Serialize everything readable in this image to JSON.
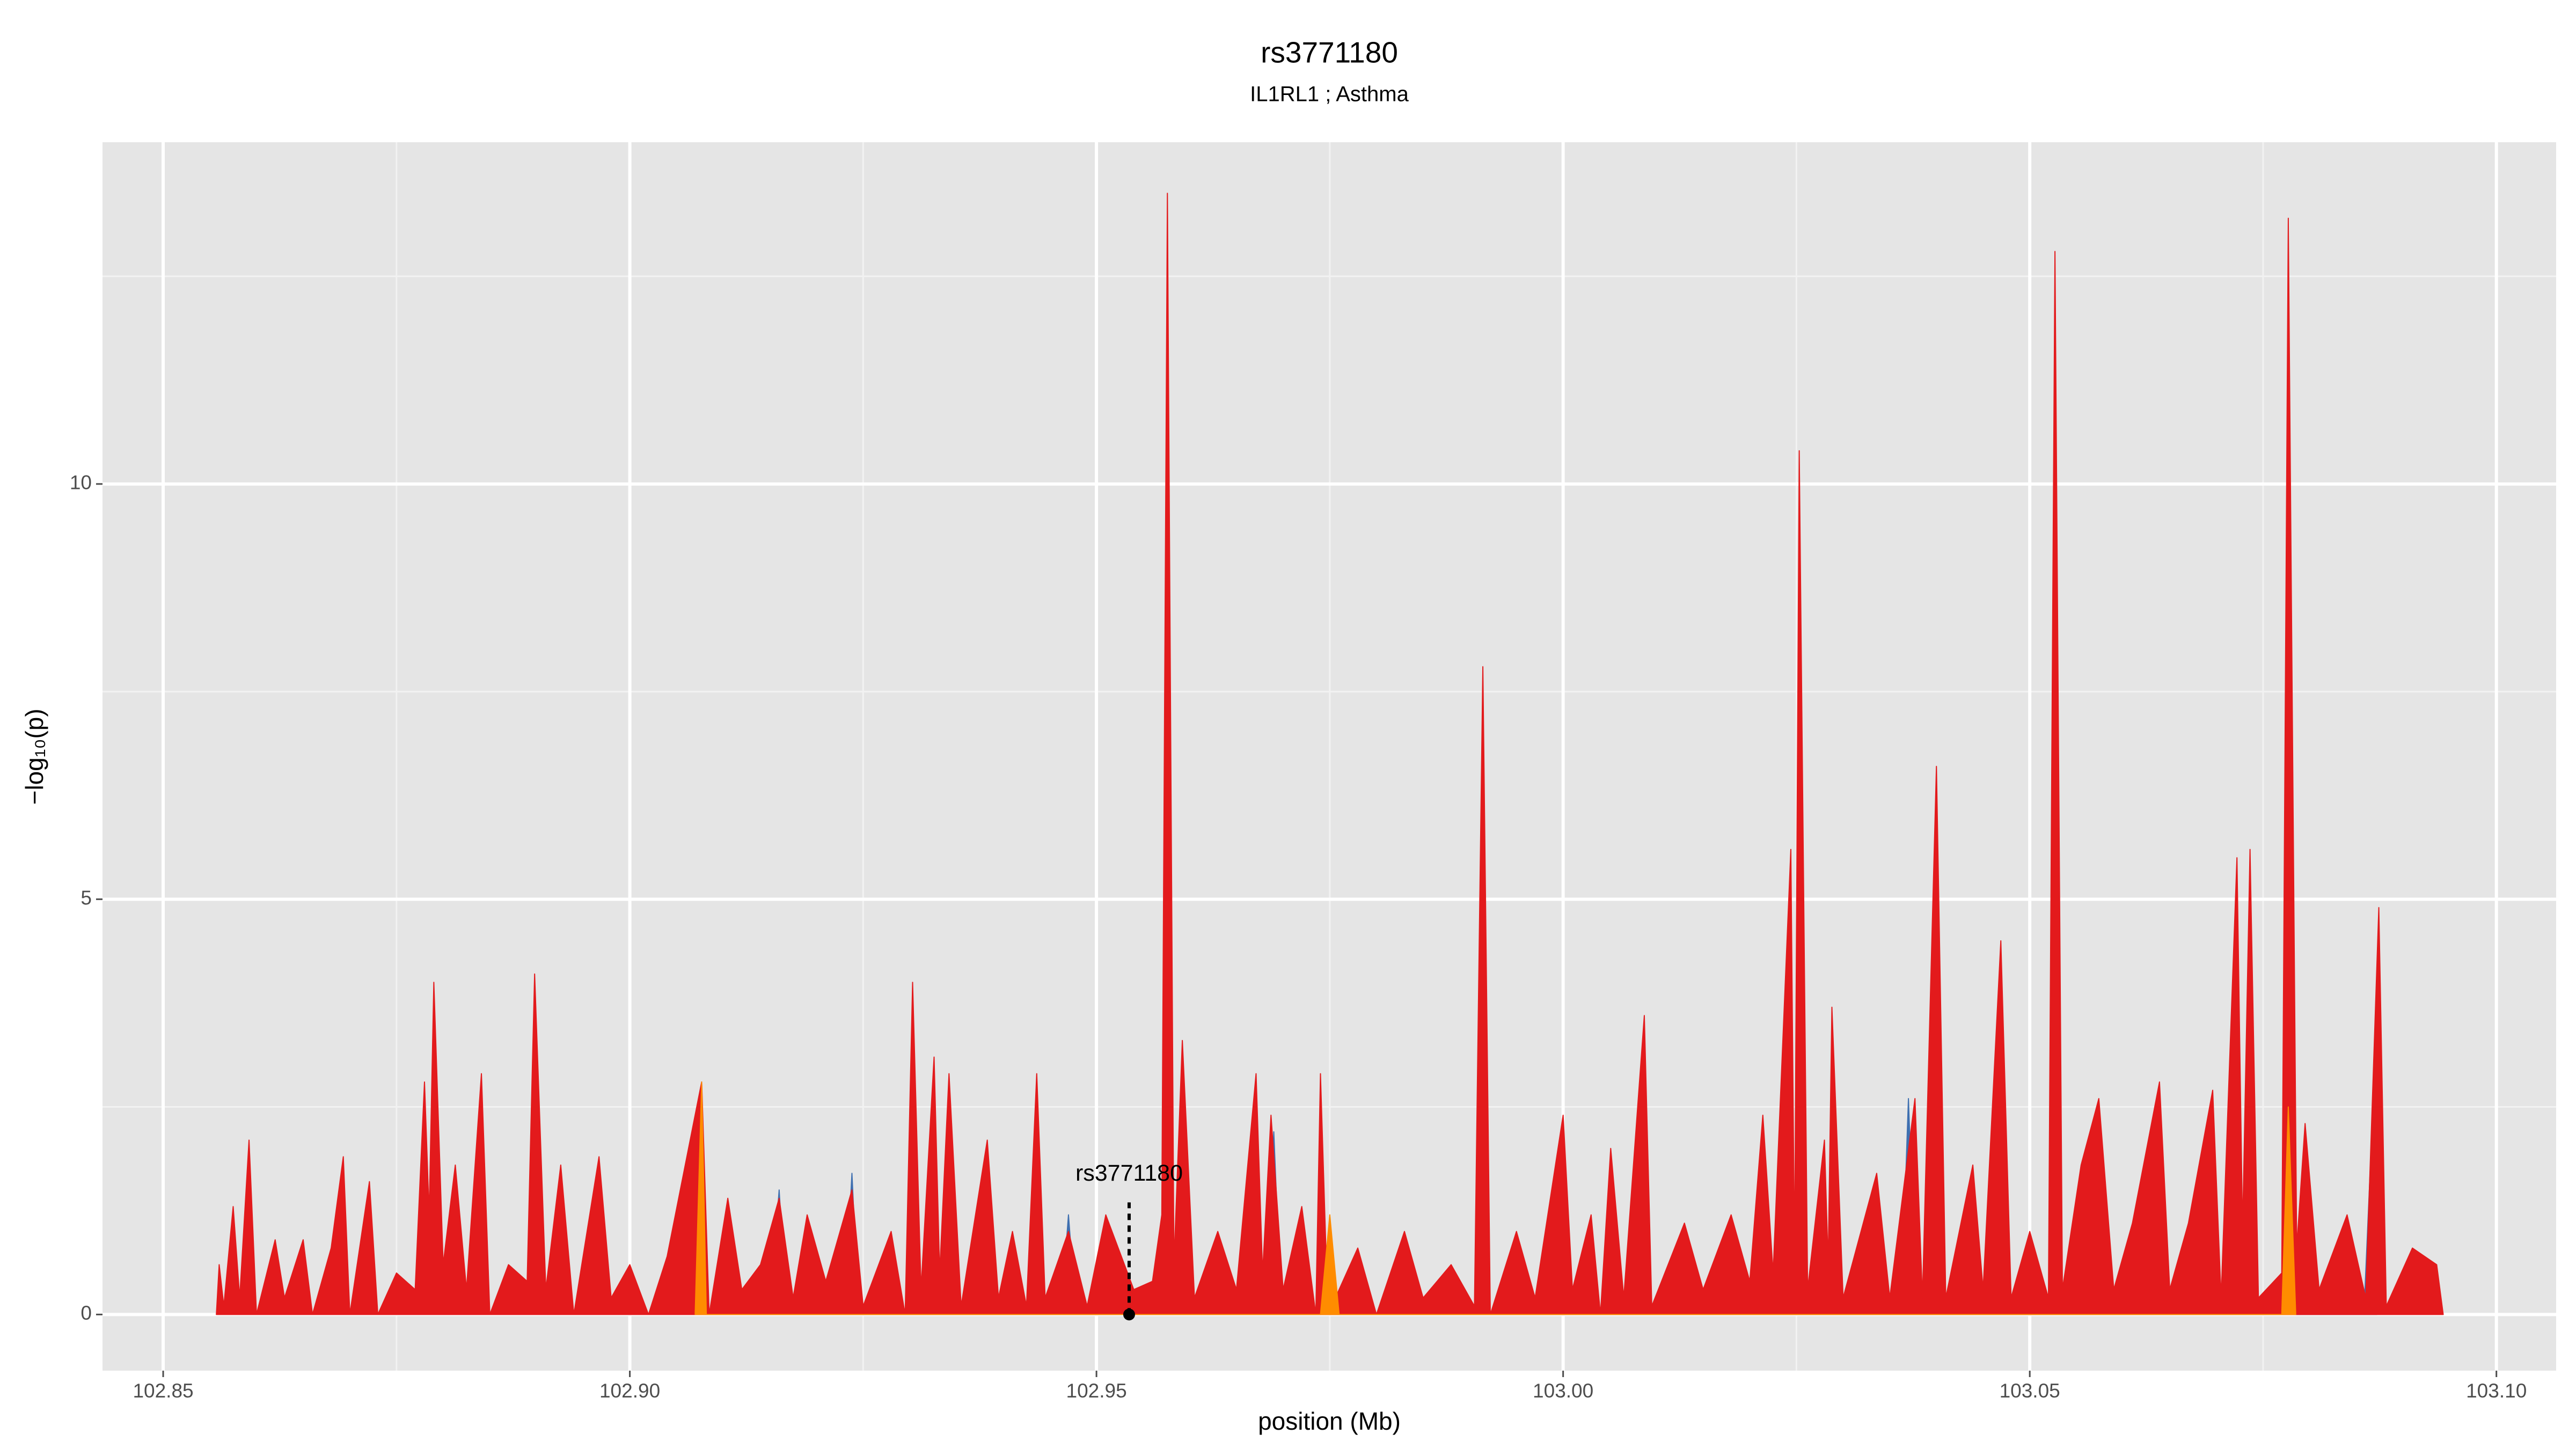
{
  "chart_data": {
    "type": "area",
    "title": "rs3771180",
    "subtitle": "IL1RL1 ; Asthma",
    "x_label": "position (Mb)",
    "y_label": "−log₁₀(p)",
    "xlim": [
      102.8435,
      103.1064
    ],
    "ylim": [
      -0.676,
      14.115
    ],
    "xticks": [
      102.85,
      {
        "value": 102.9,
        "label": "102.90"
      },
      102.95,
      {
        "value": 103.0,
        "label": "103.00"
      },
      103.05,
      {
        "value": 103.1,
        "label": "103.10"
      }
    ],
    "yticks": [
      0,
      5,
      10
    ],
    "xminorticks": [
      102.875,
      102.925,
      102.975,
      103.025,
      103.075
    ],
    "yminorticks": [
      2.5,
      7.5,
      12.5
    ],
    "grid": true,
    "background": "#e5e5e5",
    "annotation": {
      "label": "rs3771180",
      "x": 102.9535,
      "y": 1.35
    },
    "series": [
      {
        "color": "#3e6fb0",
        "x": [
          102.915,
          102.916,
          102.9168,
          102.923,
          102.9238,
          102.9245,
          102.9462,
          102.947,
          102.9478,
          102.9682,
          102.969,
          102.9698,
          103.0362,
          103.037,
          103.0378,
          103.0858,
          103.0865,
          103.0872
        ],
        "values": [
          0,
          1.5,
          0,
          0,
          1.7,
          0,
          0,
          1.2,
          0,
          0,
          2.2,
          0,
          0,
          2.6,
          0,
          0,
          1.8,
          0
        ]
      },
      {
        "color": "#e31a1c",
        "x": [
          102.8557,
          102.856,
          102.8565,
          102.8575,
          102.8582,
          102.8592,
          102.86,
          102.862,
          102.863,
          102.865,
          102.866,
          102.868,
          102.8693,
          102.87,
          102.8721,
          102.873,
          102.875,
          102.877,
          102.878,
          102.8785,
          102.879,
          102.88,
          102.8813,
          102.8825,
          102.8841,
          102.885,
          102.887,
          102.889,
          102.8898,
          102.891,
          102.8926,
          102.894,
          102.8967,
          102.898,
          102.9,
          102.902,
          102.904,
          102.9077,
          102.9085,
          102.9105,
          102.912,
          102.914,
          102.916,
          102.9175,
          102.919,
          102.921,
          102.9238,
          102.925,
          102.928,
          102.9295,
          102.9303,
          102.9312,
          102.9326,
          102.9332,
          102.9342,
          102.9355,
          102.9383,
          102.9395,
          102.941,
          102.9425,
          102.9436,
          102.9445,
          102.947,
          102.949,
          102.951,
          102.954,
          102.956,
          102.957,
          102.9576,
          102.9583,
          102.9592,
          102.9605,
          102.963,
          102.965,
          102.9671,
          102.9678,
          102.9687,
          102.97,
          102.972,
          102.9735,
          102.974,
          102.9748,
          102.978,
          102.98,
          102.983,
          102.985,
          102.988,
          102.9905,
          102.9914,
          102.9922,
          102.995,
          102.997,
          103.0,
          103.001,
          103.003,
          103.004,
          103.0051,
          103.0065,
          103.0087,
          103.0095,
          103.013,
          103.015,
          103.018,
          103.02,
          103.0214,
          103.0225,
          103.0244,
          103.0248,
          103.0253,
          103.0262,
          103.028,
          103.0284,
          103.0288,
          103.03,
          103.0336,
          103.035,
          103.0377,
          103.0385,
          103.04,
          103.041,
          103.0439,
          103.045,
          103.0469,
          103.048,
          103.05,
          103.052,
          103.0527,
          103.0535,
          103.0555,
          103.0574,
          103.059,
          103.061,
          103.0639,
          103.065,
          103.067,
          103.0696,
          103.0705,
          103.0722,
          103.0728,
          103.0736,
          103.0745,
          103.077,
          103.0777,
          103.0786,
          103.0795,
          103.081,
          103.084,
          103.086,
          103.0874,
          103.0882,
          103.091,
          103.0936,
          103.0943
        ],
        "values": [
          0,
          0.6,
          0.1,
          1.3,
          0.2,
          2.1,
          0,
          0.9,
          0.2,
          0.9,
          0,
          0.8,
          1.9,
          0,
          1.6,
          0,
          0.5,
          0.3,
          2.8,
          1.2,
          4.0,
          0.6,
          1.8,
          0.3,
          2.9,
          0,
          0.6,
          0.4,
          4.1,
          0.3,
          1.8,
          0,
          1.9,
          0.2,
          0.6,
          0,
          0.7,
          2.8,
          0,
          1.4,
          0.3,
          0.6,
          1.4,
          0.2,
          1.2,
          0.4,
          1.5,
          0.1,
          1.0,
          0,
          4.0,
          0.3,
          3.1,
          0.5,
          2.9,
          0.1,
          2.1,
          0.2,
          1.0,
          0.1,
          2.9,
          0.2,
          1.0,
          0.1,
          1.2,
          0.3,
          0.4,
          1.2,
          13.5,
          0.6,
          3.3,
          0.2,
          1.0,
          0.3,
          2.9,
          0.5,
          2.4,
          0.3,
          1.3,
          0,
          2.9,
          0,
          0.8,
          0,
          1.0,
          0.2,
          0.6,
          0.1,
          7.8,
          0,
          1.0,
          0.2,
          2.4,
          0.3,
          1.2,
          0,
          2.0,
          0.2,
          3.6,
          0.1,
          1.1,
          0.3,
          1.2,
          0.4,
          2.4,
          0.5,
          5.6,
          0.6,
          10.4,
          0.3,
          2.1,
          0.6,
          3.7,
          0.2,
          1.7,
          0.2,
          2.6,
          0.2,
          6.6,
          0.2,
          1.8,
          0.3,
          4.5,
          0.2,
          1.0,
          0.2,
          12.8,
          0.3,
          1.8,
          2.6,
          0.3,
          1.1,
          2.8,
          0.3,
          1.1,
          2.7,
          0.2,
          5.5,
          1.0,
          5.6,
          0.2,
          0.5,
          13.2,
          0.8,
          2.3,
          0.3,
          1.2,
          0.2,
          4.9,
          0.1,
          0.8,
          0.6,
          0
        ]
      },
      {
        "color": "#ff8c00",
        "x": [
          102.907,
          102.9077,
          102.9082,
          102.974,
          102.975,
          102.976,
          103.077,
          103.0777,
          103.0785
        ],
        "values": [
          0,
          2.8,
          0,
          0,
          1.2,
          0,
          0,
          2.5,
          0
        ]
      }
    ]
  }
}
